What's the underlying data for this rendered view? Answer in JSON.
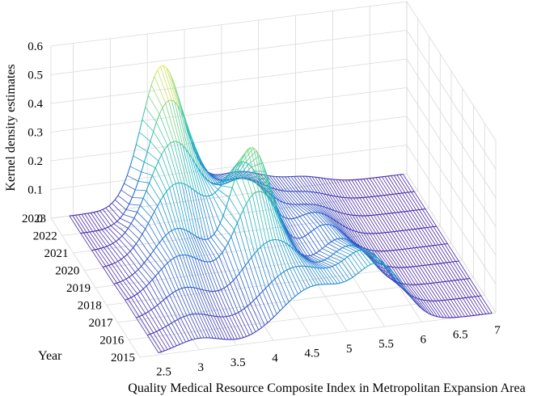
{
  "chart_data": {
    "type": "surface-waterfall-3d",
    "title": "",
    "xlabel": "Quality Medical Resource Composite Index in Metropolitan Expansion Area",
    "ylabel": "Year",
    "zlabel": "Kernel density estimates",
    "xticks": [
      "2.5",
      "3",
      "3.5",
      "4",
      "4.5",
      "5",
      "5.5",
      "6",
      "6.5",
      "7"
    ],
    "yticks": [
      "2015",
      "2016",
      "2017",
      "2018",
      "2019",
      "2020",
      "2021",
      "2022",
      "2023"
    ],
    "zticks": [
      "0",
      "0.1",
      "0.2",
      "0.3",
      "0.4",
      "0.5",
      "0.6"
    ],
    "xlim": [
      2.2,
      7
    ],
    "zlim": [
      0,
      0.6
    ],
    "colormap": [
      "#4b2aa8",
      "#2a6fd1",
      "#21b0c6",
      "#5fd09a",
      "#f1e84b"
    ],
    "series": [
      {
        "name": "2015",
        "peaks": [
          {
            "mu": 3.0,
            "sigma": 0.3,
            "h": 0.04
          },
          {
            "mu": 4.55,
            "sigma": 0.45,
            "h": 0.17
          },
          {
            "mu": 5.45,
            "sigma": 0.32,
            "h": 0.2
          }
        ]
      },
      {
        "name": "2016",
        "peaks": [
          {
            "mu": 3.05,
            "sigma": 0.3,
            "h": 0.06
          },
          {
            "mu": 4.45,
            "sigma": 0.45,
            "h": 0.18
          },
          {
            "mu": 5.4,
            "sigma": 0.32,
            "h": 0.19
          }
        ]
      },
      {
        "name": "2017",
        "peaks": [
          {
            "mu": 3.1,
            "sigma": 0.3,
            "h": 0.09
          },
          {
            "mu": 4.3,
            "sigma": 0.4,
            "h": 0.22
          },
          {
            "mu": 5.35,
            "sigma": 0.3,
            "h": 0.16
          }
        ]
      },
      {
        "name": "2018",
        "peaks": [
          {
            "mu": 3.2,
            "sigma": 0.32,
            "h": 0.14
          },
          {
            "mu": 4.25,
            "sigma": 0.32,
            "h": 0.33
          },
          {
            "mu": 5.35,
            "sigma": 0.3,
            "h": 0.13
          }
        ]
      },
      {
        "name": "2019",
        "peaks": [
          {
            "mu": 3.3,
            "sigma": 0.32,
            "h": 0.17
          },
          {
            "mu": 4.3,
            "sigma": 0.28,
            "h": 0.42
          },
          {
            "mu": 5.3,
            "sigma": 0.28,
            "h": 0.12
          }
        ]
      },
      {
        "name": "2020",
        "peaks": [
          {
            "mu": 3.45,
            "sigma": 0.34,
            "h": 0.26
          },
          {
            "mu": 4.35,
            "sigma": 0.3,
            "h": 0.3
          },
          {
            "mu": 5.3,
            "sigma": 0.3,
            "h": 0.1
          }
        ]
      },
      {
        "name": "2021",
        "peaks": [
          {
            "mu": 3.55,
            "sigma": 0.33,
            "h": 0.34
          },
          {
            "mu": 4.5,
            "sigma": 0.35,
            "h": 0.18
          },
          {
            "mu": 5.4,
            "sigma": 0.3,
            "h": 0.06
          }
        ]
      },
      {
        "name": "2022",
        "peaks": [
          {
            "mu": 3.65,
            "sigma": 0.3,
            "h": 0.42
          },
          {
            "mu": 4.6,
            "sigma": 0.38,
            "h": 0.12
          },
          {
            "mu": 5.5,
            "sigma": 0.3,
            "h": 0.04
          }
        ]
      },
      {
        "name": "2023",
        "peaks": [
          {
            "mu": 3.7,
            "sigma": 0.28,
            "h": 0.48
          },
          {
            "mu": 4.7,
            "sigma": 0.4,
            "h": 0.08
          },
          {
            "mu": 5.6,
            "sigma": 0.3,
            "h": 0.03
          }
        ]
      }
    ]
  }
}
